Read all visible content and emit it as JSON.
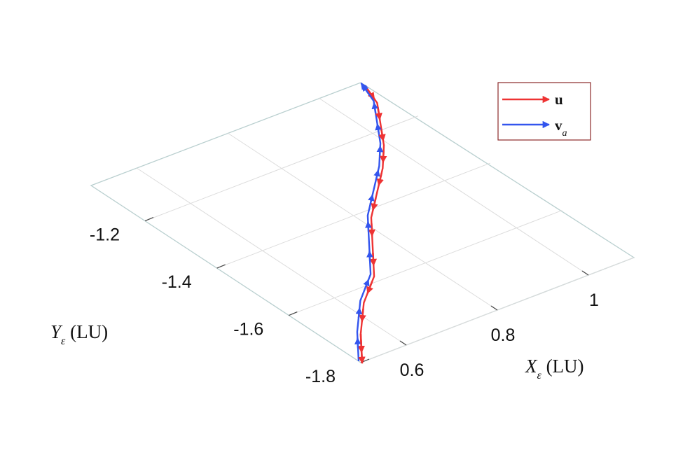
{
  "chart_data": {
    "type": "quiver3d",
    "xlabel": {
      "symbol": "X",
      "sub": "ε",
      "unit": " (LU)"
    },
    "ylabel": {
      "symbol": "Y",
      "sub": "ε",
      "unit": " (LU)"
    },
    "xticks": [
      "0.6",
      "0.8",
      "1"
    ],
    "xtick_values": [
      0.6,
      0.8,
      1.0
    ],
    "yticks": [
      "-1.2",
      "-1.4",
      "-1.6",
      "-1.8"
    ],
    "ytick_values": [
      -1.2,
      -1.4,
      -1.6,
      -1.8
    ],
    "xlim": [
      0.5,
      1.1
    ],
    "ylim": [
      -1.8,
      -1.05
    ],
    "grid": true,
    "legend_position": "top-right",
    "series": [
      {
        "name": "u",
        "color": "#ee3333"
      },
      {
        "name": "v",
        "sub": "a",
        "color": "#3355ee"
      }
    ],
    "trajectory": {
      "x": [
        0.5,
        0.56,
        0.63,
        0.7,
        0.76,
        0.82,
        0.88,
        0.94,
        0.99,
        1.03,
        1.07,
        1.09
      ],
      "y": [
        -1.8,
        -1.72,
        -1.64,
        -1.58,
        -1.5,
        -1.42,
        -1.36,
        -1.3,
        -1.24,
        -1.18,
        -1.12,
        -1.06
      ]
    }
  }
}
